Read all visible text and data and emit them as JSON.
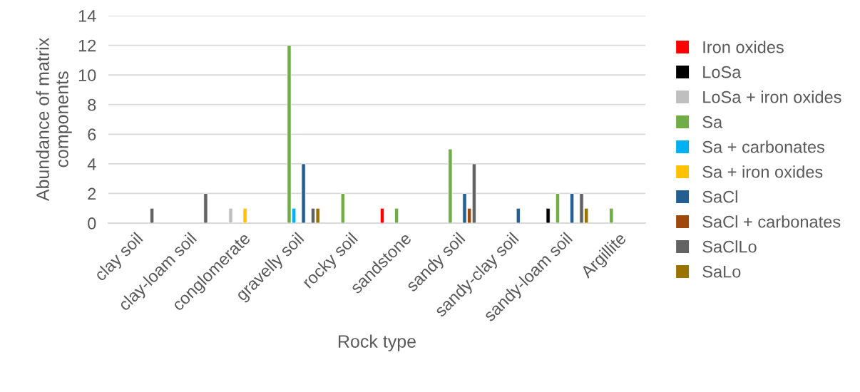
{
  "chart_data": {
    "type": "bar",
    "xlabel": "Rock type",
    "ylabel": "Abundance of matrix\ncomponents",
    "categories": [
      "clay soil",
      "clay-loam soil",
      "conglomerate",
      "gravelly soil",
      "rocky soil",
      "sandstone",
      "sandy soil",
      "sandy-clay soil",
      "sandy-loam soil",
      "Argillite"
    ],
    "series": [
      {
        "name": "Iron oxides",
        "color": "#ff0000",
        "values": [
          null,
          null,
          null,
          null,
          null,
          1,
          null,
          null,
          null,
          null
        ]
      },
      {
        "name": "LoSa",
        "color": "#000000",
        "values": [
          null,
          null,
          null,
          null,
          null,
          null,
          null,
          null,
          1,
          null
        ]
      },
      {
        "name": "LoSa + iron oxides",
        "color": "#bfbfbf",
        "values": [
          null,
          null,
          1,
          null,
          null,
          null,
          null,
          null,
          null,
          null
        ]
      },
      {
        "name": "Sa",
        "color": "#70ad47",
        "values": [
          null,
          null,
          null,
          12,
          2,
          1,
          5,
          null,
          2,
          1
        ]
      },
      {
        "name": "Sa + carbonates",
        "color": "#00b0f0",
        "values": [
          null,
          null,
          null,
          1,
          null,
          null,
          null,
          null,
          null,
          null
        ]
      },
      {
        "name": "Sa + iron oxides",
        "color": "#ffc000",
        "values": [
          null,
          null,
          1,
          null,
          null,
          null,
          null,
          null,
          null,
          null
        ]
      },
      {
        "name": "SaCl",
        "color": "#255e91",
        "values": [
          null,
          null,
          null,
          4,
          null,
          null,
          2,
          1,
          2,
          null
        ]
      },
      {
        "name": "SaCl + carbonates",
        "color": "#9e480e",
        "values": [
          null,
          null,
          null,
          null,
          null,
          null,
          1,
          null,
          null,
          null
        ]
      },
      {
        "name": "SaClLo",
        "color": "#636363",
        "values": [
          1,
          2,
          null,
          1,
          null,
          null,
          4,
          null,
          2,
          null
        ]
      },
      {
        "name": "SaLo",
        "color": "#997300",
        "values": [
          null,
          null,
          null,
          1,
          null,
          null,
          null,
          null,
          1,
          null
        ]
      }
    ],
    "ylim": [
      0,
      14
    ],
    "yticks": [
      0,
      2,
      4,
      6,
      8,
      10,
      12,
      14
    ],
    "grid": "y",
    "legend": "right"
  }
}
